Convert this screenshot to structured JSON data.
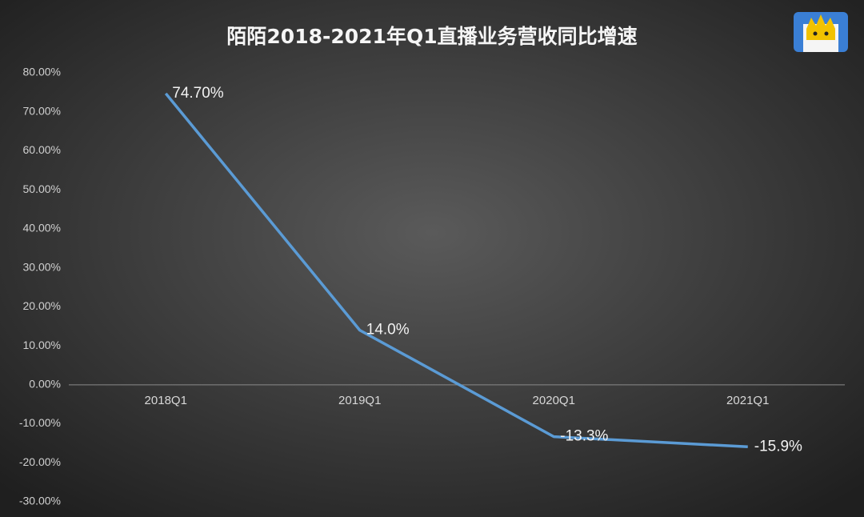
{
  "chart_data": {
    "type": "line",
    "title": "陌陌2018-2021年Q1直播业务营收同比增速",
    "categories": [
      "2018Q1",
      "2019Q1",
      "2020Q1",
      "2021Q1"
    ],
    "values": [
      74.7,
      14.0,
      -13.3,
      -15.9
    ],
    "value_labels": [
      "74.70%",
      "14.0%",
      "-13.3%",
      "-15.9%"
    ],
    "color": "#5b9bd5",
    "ylim": [
      -30,
      80
    ],
    "yticks": [
      {
        "value": -30,
        "label": "-30.00%"
      },
      {
        "value": -20,
        "label": "-20.00%"
      },
      {
        "value": -10,
        "label": "-10.00%"
      },
      {
        "value": 0,
        "label": "0.00%"
      },
      {
        "value": 10,
        "label": "10.00%"
      },
      {
        "value": 20,
        "label": "20.00%"
      },
      {
        "value": 30,
        "label": "30.00%"
      },
      {
        "value": 40,
        "label": "40.00%"
      },
      {
        "value": 50,
        "label": "50.00%"
      },
      {
        "value": 60,
        "label": "60.00%"
      },
      {
        "value": 70,
        "label": "70.00%"
      },
      {
        "value": 80,
        "label": "80.00%"
      }
    ],
    "grid": false
  }
}
